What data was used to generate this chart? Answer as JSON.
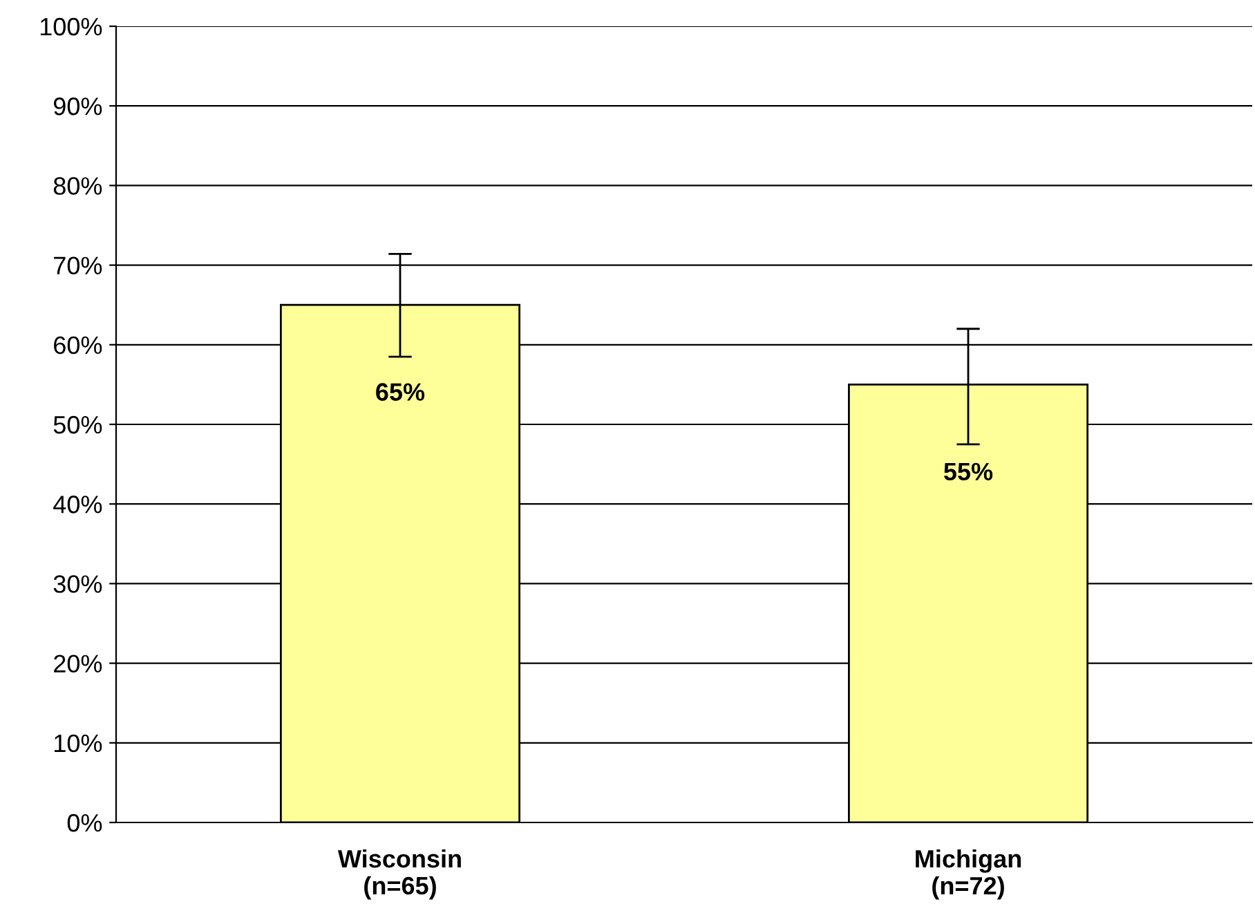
{
  "chart_data": {
    "type": "bar",
    "categories": [
      "Wisconsin\n(n=65)",
      "Michigan\n(n=72)"
    ],
    "values": [
      65,
      55
    ],
    "value_labels": [
      "65%",
      "55%"
    ],
    "errors": [
      [
        58.5,
        71.4
      ],
      [
        47.5,
        62
      ]
    ],
    "color": "#ffff99",
    "ylim": [
      0,
      100
    ],
    "yticks": [
      {
        "value": 0,
        "label": "0%"
      },
      {
        "value": 10,
        "label": "10%"
      },
      {
        "value": 20,
        "label": "20%"
      },
      {
        "value": 30,
        "label": "30%"
      },
      {
        "value": 40,
        "label": "40%"
      },
      {
        "value": 50,
        "label": "50%"
      },
      {
        "value": 60,
        "label": "60%"
      },
      {
        "value": 70,
        "label": "70%"
      },
      {
        "value": 80,
        "label": "80%"
      },
      {
        "value": 90,
        "label": "90%"
      },
      {
        "value": 100,
        "label": "100%"
      }
    ],
    "grid": "y"
  }
}
